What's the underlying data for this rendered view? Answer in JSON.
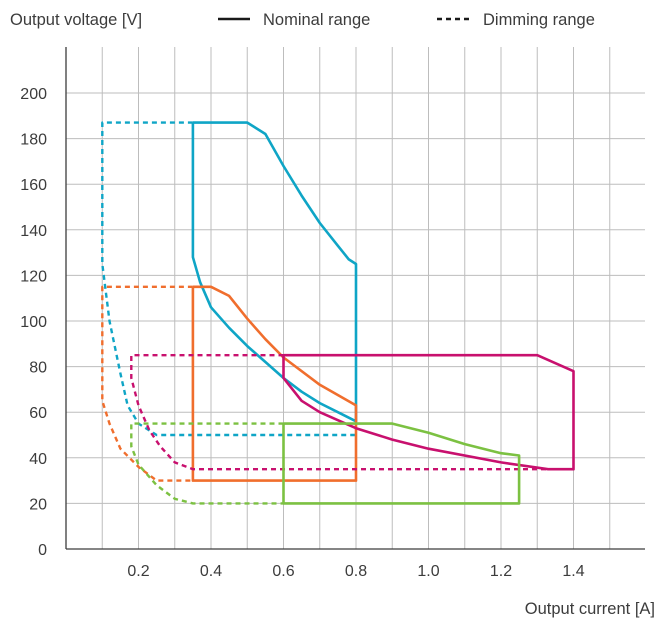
{
  "chart_data": {
    "type": "line",
    "ylabel": "Output voltage [V]",
    "xlabel": "Output current [A]",
    "xlim": [
      0,
      1.6
    ],
    "ylim": [
      0,
      200
    ],
    "x_ticks": [
      0.2,
      0.4,
      0.6,
      0.8,
      1.0,
      1.2,
      1.4
    ],
    "x_tick_labels": [
      "0.2",
      "0.4",
      "0.6",
      "0.8",
      "1.0",
      "1.2",
      "1.4"
    ],
    "y_ticks": [
      0,
      20,
      40,
      60,
      80,
      100,
      120,
      140,
      160,
      180,
      200
    ],
    "y_tick_labels": [
      "0",
      "20",
      "40",
      "60",
      "80",
      "100",
      "120",
      "140",
      "160",
      "180",
      "200"
    ],
    "x_gridlines": [
      0.1,
      0.2,
      0.3,
      0.4,
      0.5,
      0.6,
      0.7,
      0.8,
      0.9,
      1.0,
      1.1,
      1.2,
      1.3,
      1.4,
      1.5
    ],
    "y_gridlines": [
      0,
      20,
      40,
      60,
      80,
      100,
      120,
      140,
      160,
      180,
      200
    ],
    "grid": true,
    "legend": {
      "position": "top",
      "entries": [
        {
          "label": "Nominal range",
          "style": "solid"
        },
        {
          "label": "Dimming range",
          "style": "dashed"
        }
      ]
    },
    "series": [
      {
        "color": "#0fa5c6",
        "nominal": [
          [
            0.35,
            187
          ],
          [
            0.5,
            187
          ],
          [
            0.55,
            182
          ],
          [
            0.6,
            168
          ],
          [
            0.65,
            155
          ],
          [
            0.7,
            143
          ],
          [
            0.75,
            133
          ],
          [
            0.78,
            127
          ],
          [
            0.8,
            125
          ],
          [
            0.8,
            56
          ],
          [
            0.75,
            60
          ],
          [
            0.7,
            64
          ],
          [
            0.65,
            69
          ],
          [
            0.6,
            75
          ],
          [
            0.55,
            82
          ],
          [
            0.5,
            89
          ],
          [
            0.45,
            97
          ],
          [
            0.4,
            106
          ],
          [
            0.37,
            117
          ],
          [
            0.35,
            128
          ],
          [
            0.35,
            187
          ]
        ],
        "dimming": [
          [
            0.35,
            187
          ],
          [
            0.1,
            187
          ],
          [
            0.1,
            125
          ],
          [
            0.12,
            100
          ],
          [
            0.15,
            77
          ],
          [
            0.17,
            63
          ],
          [
            0.2,
            55
          ],
          [
            0.25,
            50
          ],
          [
            0.8,
            50
          ]
        ]
      },
      {
        "color": "#f06e2d",
        "nominal": [
          [
            0.35,
            115
          ],
          [
            0.4,
            115
          ],
          [
            0.45,
            111
          ],
          [
            0.5,
            101
          ],
          [
            0.55,
            92
          ],
          [
            0.6,
            84
          ],
          [
            0.7,
            72
          ],
          [
            0.8,
            63
          ],
          [
            0.8,
            30
          ],
          [
            0.35,
            30
          ],
          [
            0.35,
            115
          ]
        ],
        "dimming": [
          [
            0.35,
            115
          ],
          [
            0.1,
            115
          ],
          [
            0.1,
            65
          ],
          [
            0.12,
            55
          ],
          [
            0.15,
            44
          ],
          [
            0.2,
            36
          ],
          [
            0.25,
            30
          ],
          [
            0.35,
            30
          ]
        ]
      },
      {
        "color": "#c8106e",
        "nominal": [
          [
            0.6,
            85
          ],
          [
            1.3,
            85
          ],
          [
            1.4,
            78
          ],
          [
            1.4,
            35
          ],
          [
            1.33,
            35
          ],
          [
            1.2,
            38
          ],
          [
            1.0,
            44
          ],
          [
            0.9,
            48
          ],
          [
            0.8,
            53
          ],
          [
            0.7,
            60
          ],
          [
            0.65,
            65
          ],
          [
            0.6,
            75
          ],
          [
            0.6,
            85
          ]
        ],
        "dimming": [
          [
            0.6,
            85
          ],
          [
            0.18,
            85
          ],
          [
            0.18,
            75
          ],
          [
            0.2,
            63
          ],
          [
            0.23,
            52
          ],
          [
            0.26,
            45
          ],
          [
            0.3,
            38
          ],
          [
            0.35,
            35
          ],
          [
            1.33,
            35
          ]
        ]
      },
      {
        "color": "#7cc142",
        "nominal": [
          [
            0.6,
            55
          ],
          [
            0.9,
            55
          ],
          [
            1.0,
            51
          ],
          [
            1.1,
            46
          ],
          [
            1.2,
            42
          ],
          [
            1.25,
            41
          ],
          [
            1.25,
            20
          ],
          [
            0.6,
            20
          ],
          [
            0.6,
            55
          ]
        ],
        "dimming": [
          [
            0.6,
            55
          ],
          [
            0.18,
            55
          ],
          [
            0.18,
            45
          ],
          [
            0.2,
            37
          ],
          [
            0.25,
            28
          ],
          [
            0.3,
            22
          ],
          [
            0.35,
            20
          ],
          [
            0.6,
            20
          ]
        ]
      }
    ]
  }
}
